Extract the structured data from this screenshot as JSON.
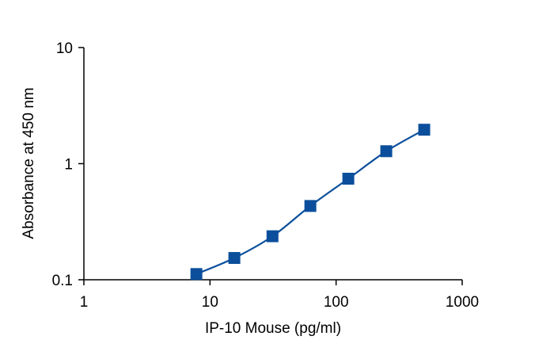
{
  "chart_data": {
    "type": "scatter",
    "title": "",
    "xlabel": "IP-10 Mouse (pg/ml)",
    "ylabel": "Absorbance at 450 nm",
    "x_scale": "log",
    "y_scale": "log",
    "xlim": [
      1,
      1000
    ],
    "ylim": [
      0.1,
      10
    ],
    "x_ticks": [
      "1",
      "10",
      "100",
      "1000"
    ],
    "y_ticks": [
      "0.1",
      "1",
      "10"
    ],
    "grid": false,
    "legend": "none",
    "marker_color": "#0B4F9C",
    "line_color": "#0B4F9C",
    "series": [
      {
        "x": [
          7.8,
          15.6,
          31.3,
          62.5,
          125,
          250,
          500
        ],
        "y": [
          0.112,
          0.154,
          0.237,
          0.432,
          0.742,
          1.28,
          1.96
        ],
        "marker": "square",
        "fit_curve": "smooth"
      }
    ]
  }
}
